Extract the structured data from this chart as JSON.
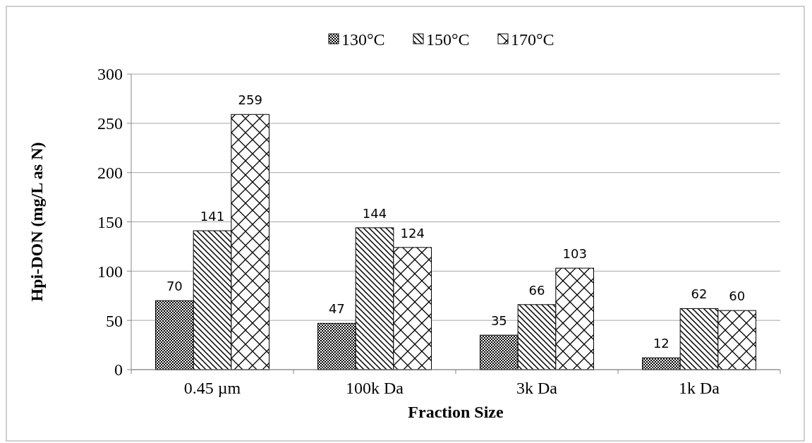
{
  "chart_data": {
    "type": "bar",
    "xlabel": "Fraction Size",
    "ylabel": "Hpi-DON (mg/L as N)",
    "categories": [
      "0.45 µm",
      "100k Da",
      "3k Da",
      "1k Da"
    ],
    "series": [
      {
        "name": "130°C",
        "color": "#000000",
        "values": [
          70,
          47,
          35,
          12
        ]
      },
      {
        "name": "150°C",
        "color": "#000000",
        "values": [
          141,
          144,
          66,
          62
        ]
      },
      {
        "name": "170°C",
        "color": "#000000",
        "values": [
          259,
          124,
          103,
          60
        ]
      }
    ],
    "ylim": [
      0,
      300
    ],
    "yticks": [
      0,
      50,
      100,
      150,
      200,
      250,
      300
    ],
    "grid": "y",
    "legend": "top",
    "data_labels": true
  }
}
